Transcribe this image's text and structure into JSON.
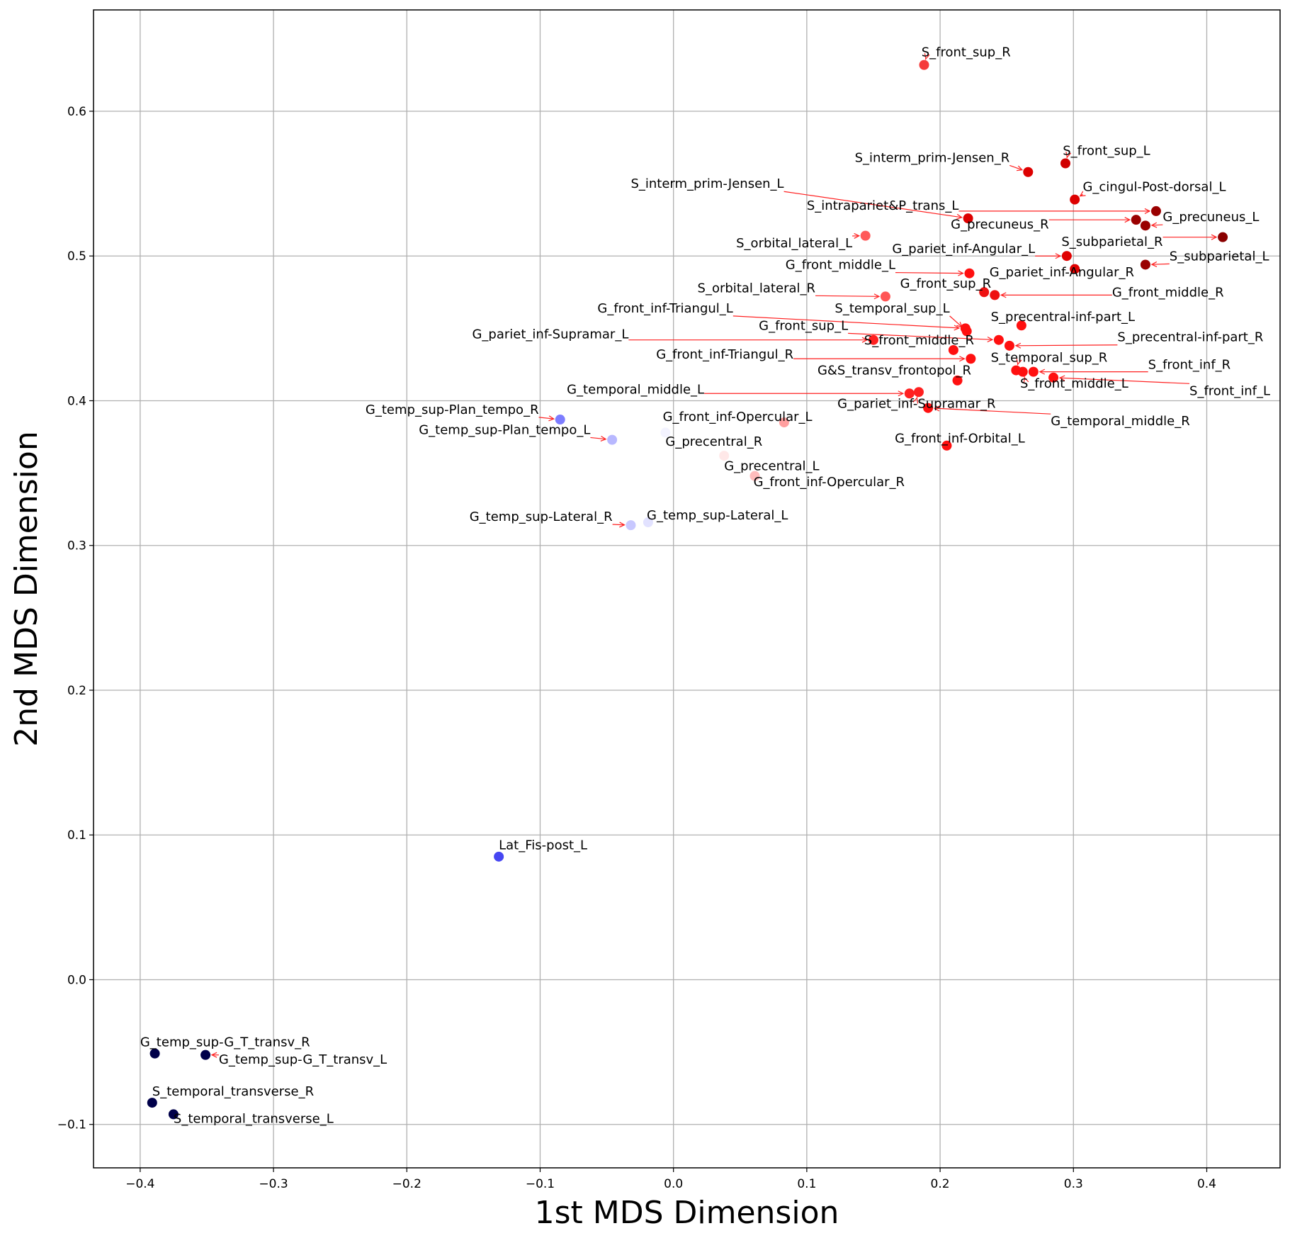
{
  "chart_data": {
    "type": "scatter",
    "xlabel": "1st MDS Dimension",
    "ylabel": "2nd MDS Dimension",
    "xlim": [
      -0.435,
      0.455
    ],
    "ylim": [
      -0.13,
      0.67
    ],
    "xticks": [
      -0.4,
      -0.3,
      -0.2,
      -0.1,
      0.0,
      0.1,
      0.2,
      0.3,
      0.4
    ],
    "xtick_labels": [
      "−0.4",
      "−0.3",
      "−0.2",
      "−0.1",
      "0.0",
      "0.1",
      "0.2",
      "0.3",
      "0.4"
    ],
    "yticks": [
      -0.1,
      0.0,
      0.1,
      0.2,
      0.3,
      0.4,
      0.5,
      0.6
    ],
    "ytick_labels": [
      "−0.1",
      "0.0",
      "0.1",
      "0.2",
      "0.3",
      "0.4",
      "0.5",
      "0.6"
    ],
    "grid": true,
    "points": [
      {
        "label": "S_front_sup_R",
        "x": 0.188,
        "y": 0.632,
        "color": "#f53a3a",
        "tx": 0.186,
        "ty": 0.638
      },
      {
        "label": "S_front_sup_L",
        "x": 0.294,
        "y": 0.564,
        "color": "#d00000",
        "tx": 0.292,
        "ty": 0.57
      },
      {
        "label": "S_interm_prim-Jensen_R",
        "x": 0.266,
        "y": 0.558,
        "color": "#dd0000",
        "tx": 0.136,
        "ty": 0.565
      },
      {
        "label": "G_cingul-Post-dorsal_L",
        "x": 0.301,
        "y": 0.539,
        "color": "#dd0000",
        "tx": 0.307,
        "ty": 0.545
      },
      {
        "label": "S_interm_prim-Jensen_L",
        "x": 0.221,
        "y": 0.526,
        "color": "#dd0000",
        "tx": -0.032,
        "ty": 0.547
      },
      {
        "label": "S_intrapariet&P_trans_L",
        "x": 0.362,
        "y": 0.531,
        "color": "#9a0000",
        "tx": 0.1,
        "ty": 0.532
      },
      {
        "label": "G_precuneus_L",
        "x": 0.354,
        "y": 0.521,
        "color": "#9a0000",
        "tx": 0.367,
        "ty": 0.524
      },
      {
        "label": "G_precuneus_R",
        "x": 0.347,
        "y": 0.525,
        "color": "#9a0000",
        "tx": 0.208,
        "ty": 0.519
      },
      {
        "label": "S_orbital_lateral_L",
        "x": 0.144,
        "y": 0.514,
        "color": "#ff5a5a",
        "tx": 0.047,
        "ty": 0.506
      },
      {
        "label": "S_subparietal_R",
        "x": 0.412,
        "y": 0.513,
        "color": "#8a0000",
        "tx": 0.291,
        "ty": 0.507
      },
      {
        "label": "G_pariet_inf-Angular_L",
        "x": 0.295,
        "y": 0.5,
        "color": "#e00000",
        "tx": 0.164,
        "ty": 0.502
      },
      {
        "label": "S_subparietal_L",
        "x": 0.354,
        "y": 0.494,
        "color": "#9a0000",
        "tx": 0.372,
        "ty": 0.497
      },
      {
        "label": "G_pariet_inf-Angular_R",
        "x": 0.301,
        "y": 0.491,
        "color": "#dd0000",
        "tx": 0.237,
        "ty": 0.486
      },
      {
        "label": "G_front_middle_L",
        "x": 0.222,
        "y": 0.488,
        "color": "#ff1010",
        "tx": 0.084,
        "ty": 0.491
      },
      {
        "label": "G_front_sup_R",
        "x": 0.233,
        "y": 0.475,
        "color": "#ee1111",
        "tx": 0.17,
        "ty": 0.478
      },
      {
        "label": "S_orbital_lateral_R",
        "x": 0.159,
        "y": 0.472,
        "color": "#ff5555",
        "tx": 0.018,
        "ty": 0.475
      },
      {
        "label": "G_front_middle_R",
        "x": 0.241,
        "y": 0.473,
        "color": "#ee1111",
        "tx": 0.329,
        "ty": 0.472
      },
      {
        "label": "G_front_inf-Triangul_L",
        "x": 0.219,
        "y": 0.45,
        "color": "#ff1010",
        "tx": -0.057,
        "ty": 0.461
      },
      {
        "label": "S_temporal_sup_L",
        "x": 0.22,
        "y": 0.448,
        "color": "#ff1010",
        "tx": 0.121,
        "ty": 0.461
      },
      {
        "label": "S_precentral-inf-part_L",
        "x": 0.261,
        "y": 0.452,
        "color": "#ff1010",
        "tx": 0.238,
        "ty": 0.455
      },
      {
        "label": "G_front_sup_L",
        "x": 0.244,
        "y": 0.442,
        "color": "#ff1010",
        "tx": 0.064,
        "ty": 0.449
      },
      {
        "label": "G_pariet_inf-Supramar_L",
        "x": 0.15,
        "y": 0.442,
        "color": "#ff2020",
        "tx": -0.151,
        "ty": 0.443
      },
      {
        "label": "S_front_middle_R",
        "x": 0.21,
        "y": 0.435,
        "color": "#ff1010",
        "tx": 0.143,
        "ty": 0.439
      },
      {
        "label": "S_precentral-inf-part_R",
        "x": 0.252,
        "y": 0.438,
        "color": "#ff1010",
        "tx": 0.333,
        "ty": 0.441
      },
      {
        "label": "G_front_inf-Triangul_R",
        "x": 0.223,
        "y": 0.429,
        "color": "#ff1010",
        "tx": -0.013,
        "ty": 0.429
      },
      {
        "label": "S_temporal_sup_R",
        "x": 0.257,
        "y": 0.421,
        "color": "#ff1010",
        "tx": 0.238,
        "ty": 0.427
      },
      {
        "label": "S_front_inf_R",
        "x": 0.27,
        "y": 0.42,
        "color": "#ff1010",
        "tx": 0.356,
        "ty": 0.422
      },
      {
        "label": "G&S_transv_frontopol_R",
        "x": 0.213,
        "y": 0.414,
        "color": "#ff1010",
        "tx": 0.108,
        "ty": 0.418
      },
      {
        "label": "S_front_middle_L",
        "x": 0.262,
        "y": 0.42,
        "color": "#ff1010",
        "tx": 0.26,
        "ty": 0.409
      },
      {
        "label": "S_front_inf_L",
        "x": 0.285,
        "y": 0.416,
        "color": "#ff1010",
        "tx": 0.387,
        "ty": 0.404
      },
      {
        "label": "G_temporal_middle_L",
        "x": 0.177,
        "y": 0.405,
        "color": "#ff2020",
        "tx": -0.08,
        "ty": 0.405
      },
      {
        "label": "G_pariet_inf-Supramar_R",
        "x": 0.184,
        "y": 0.406,
        "color": "#ff2020",
        "tx": 0.123,
        "ty": 0.395
      },
      {
        "label": "G_temporal_middle_R",
        "x": 0.191,
        "y": 0.395,
        "color": "#ff1010",
        "tx": 0.283,
        "ty": 0.383
      },
      {
        "label": "G_temp_sup-Plan_tempo_R",
        "x": -0.085,
        "y": 0.387,
        "color": "#7d7dff",
        "tx": -0.231,
        "ty": 0.391
      },
      {
        "label": "G_front_inf-Opercular_L",
        "x": 0.083,
        "y": 0.385,
        "color": "#ffa0a0",
        "tx": -0.008,
        "ty": 0.386
      },
      {
        "label": "G_temp_sup-Plan_tempo_L",
        "x": -0.046,
        "y": 0.373,
        "color": "#b8b8ff",
        "tx": -0.191,
        "ty": 0.377
      },
      {
        "label": "G_precentral_R",
        "x": -0.006,
        "y": 0.378,
        "color": "#f3f3ff",
        "tx": -0.006,
        "ty": 0.369
      },
      {
        "label": "G_front_inf-Orbital_L",
        "x": 0.205,
        "y": 0.369,
        "color": "#ff1010",
        "tx": 0.166,
        "ty": 0.371
      },
      {
        "label": "G_precentral_L",
        "x": 0.038,
        "y": 0.362,
        "color": "#ffe8e8",
        "tx": 0.038,
        "ty": 0.352
      },
      {
        "label": "G_front_inf-Opercular_R",
        "x": 0.061,
        "y": 0.348,
        "color": "#ffbcbc",
        "tx": 0.06,
        "ty": 0.341
      },
      {
        "label": "G_temp_sup-Lateral_R",
        "x": -0.032,
        "y": 0.314,
        "color": "#c8c8ff",
        "tx": -0.153,
        "ty": 0.317
      },
      {
        "label": "G_temp_sup-Lateral_L",
        "x": -0.019,
        "y": 0.316,
        "color": "#e2e2ff",
        "tx": -0.02,
        "ty": 0.318
      },
      {
        "label": "Lat_Fis-post_L",
        "x": -0.131,
        "y": 0.085,
        "color": "#4646f2",
        "tx": -0.131,
        "ty": 0.09
      },
      {
        "label": "G_temp_sup-G_T_transv_R",
        "x": -0.389,
        "y": -0.051,
        "color": "#00004a",
        "tx": -0.4,
        "ty": -0.046
      },
      {
        "label": "G_temp_sup-G_T_transv_L",
        "x": -0.351,
        "y": -0.052,
        "color": "#00004a",
        "tx": -0.341,
        "ty": -0.058
      },
      {
        "label": "S_temporal_transverse_R",
        "x": -0.391,
        "y": -0.085,
        "color": "#00004a",
        "tx": -0.391,
        "ty": -0.08
      },
      {
        "label": "S_temporal_transverse_L",
        "x": -0.375,
        "y": -0.093,
        "color": "#00004a",
        "tx": -0.375,
        "ty": -0.099
      }
    ]
  }
}
